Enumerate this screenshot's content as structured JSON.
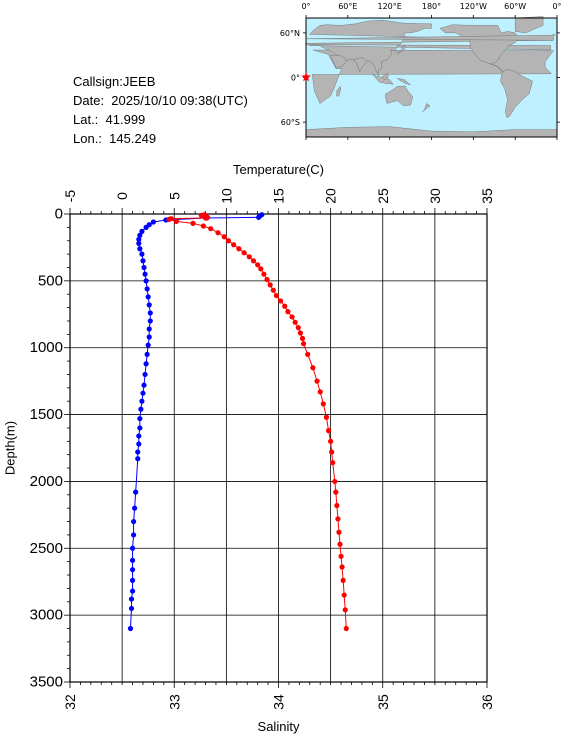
{
  "station": {
    "callsign": "Callsign:JEEB",
    "date": "Date:  2025/10/10 09:38(UTC)",
    "lat": "Lat.:  41.999",
    "lon": "Lon.:  145.249"
  },
  "map": {
    "lon_labels": [
      "0°",
      "60°E",
      "120°E",
      "180°",
      "120°W",
      "60°W",
      "0°"
    ],
    "lat_labels": [
      "60°N",
      "0°",
      "60°S"
    ],
    "ocean_color": "#bff0ff",
    "land_color": "#b4b4b4",
    "marker_color": "#ff0000",
    "marker_icon": "star-icon"
  },
  "chart_data": {
    "type": "line",
    "grid": true,
    "top_axis": {
      "label": "Temperature(C)",
      "range": [
        -5,
        35
      ],
      "ticks": [
        -5,
        0,
        5,
        10,
        15,
        20,
        25,
        30,
        35
      ]
    },
    "bottom_axis": {
      "label": "Salinity",
      "range": [
        32,
        36
      ],
      "ticks": [
        32,
        33,
        34,
        35,
        36
      ]
    },
    "y_axis": {
      "label": "Depth(m)",
      "range": [
        0,
        3500
      ],
      "reversed": true,
      "ticks": [
        0,
        500,
        1000,
        1500,
        2000,
        2500,
        3000,
        3500
      ]
    },
    "series": [
      {
        "variable": "temperature",
        "axis": "top",
        "color": "#0000ff",
        "points": [
          [
            13.4,
            5
          ],
          [
            13.2,
            15
          ],
          [
            13.1,
            25
          ],
          [
            8.1,
            30
          ],
          [
            4.2,
            45
          ],
          [
            3.0,
            60
          ],
          [
            2.6,
            80
          ],
          [
            2.3,
            100
          ],
          [
            1.9,
            130
          ],
          [
            1.7,
            160
          ],
          [
            1.6,
            190
          ],
          [
            1.6,
            220
          ],
          [
            1.7,
            260
          ],
          [
            1.9,
            300
          ],
          [
            2.0,
            350
          ],
          [
            2.1,
            400
          ],
          [
            2.2,
            450
          ],
          [
            2.3,
            500
          ],
          [
            2.4,
            560
          ],
          [
            2.5,
            620
          ],
          [
            2.6,
            680
          ],
          [
            2.7,
            740
          ],
          [
            2.7,
            800
          ],
          [
            2.6,
            860
          ],
          [
            2.6,
            920
          ],
          [
            2.5,
            980
          ],
          [
            2.4,
            1050
          ],
          [
            2.3,
            1120
          ],
          [
            2.2,
            1200
          ],
          [
            2.1,
            1280
          ],
          [
            2.0,
            1340
          ],
          [
            1.9,
            1400
          ],
          [
            1.8,
            1460
          ],
          [
            1.7,
            1530
          ],
          [
            1.7,
            1600
          ],
          [
            1.6,
            1660
          ],
          [
            1.6,
            1720
          ],
          [
            1.5,
            1780
          ],
          [
            1.5,
            1830
          ],
          [
            1.3,
            2080
          ],
          [
            1.2,
            2200
          ],
          [
            1.1,
            2300
          ],
          [
            1.1,
            2400
          ],
          [
            1.0,
            2500
          ],
          [
            1.0,
            2590
          ],
          [
            1.0,
            2660
          ],
          [
            1.0,
            2740
          ],
          [
            1.0,
            2820
          ],
          [
            0.9,
            2880
          ],
          [
            0.9,
            2950
          ],
          [
            0.8,
            3100
          ]
        ]
      },
      {
        "variable": "salinity",
        "axis": "bottom",
        "color": "#ff0000",
        "points": [
          [
            33.29,
            5
          ],
          [
            33.26,
            10
          ],
          [
            33.3,
            18
          ],
          [
            33.32,
            25
          ],
          [
            33.3,
            30
          ],
          [
            32.97,
            35
          ],
          [
            32.95,
            40
          ],
          [
            33.02,
            55
          ],
          [
            33.18,
            70
          ],
          [
            33.28,
            90
          ],
          [
            33.35,
            110
          ],
          [
            33.42,
            140
          ],
          [
            33.48,
            170
          ],
          [
            33.52,
            200
          ],
          [
            33.57,
            230
          ],
          [
            33.62,
            260
          ],
          [
            33.67,
            290
          ],
          [
            33.72,
            320
          ],
          [
            33.76,
            350
          ],
          [
            33.8,
            380
          ],
          [
            33.83,
            410
          ],
          [
            33.86,
            450
          ],
          [
            33.89,
            490
          ],
          [
            33.92,
            530
          ],
          [
            33.95,
            570
          ],
          [
            33.98,
            610
          ],
          [
            34.02,
            650
          ],
          [
            34.06,
            690
          ],
          [
            34.09,
            730
          ],
          [
            34.13,
            770
          ],
          [
            34.16,
            810
          ],
          [
            34.19,
            850
          ],
          [
            34.21,
            890
          ],
          [
            34.23,
            930
          ],
          [
            34.24,
            970
          ],
          [
            34.28,
            1050
          ],
          [
            34.33,
            1150
          ],
          [
            34.37,
            1250
          ],
          [
            34.4,
            1330
          ],
          [
            34.43,
            1420
          ],
          [
            34.46,
            1520
          ],
          [
            34.48,
            1620
          ],
          [
            34.5,
            1700
          ],
          [
            34.51,
            1780
          ],
          [
            34.52,
            1860
          ],
          [
            34.54,
            2000
          ],
          [
            34.55,
            2080
          ],
          [
            34.56,
            2180
          ],
          [
            34.57,
            2280
          ],
          [
            34.58,
            2380
          ],
          [
            34.59,
            2470
          ],
          [
            34.6,
            2560
          ],
          [
            34.61,
            2640
          ],
          [
            34.62,
            2740
          ],
          [
            34.63,
            2850
          ],
          [
            34.64,
            2960
          ],
          [
            34.65,
            3100
          ]
        ]
      }
    ]
  }
}
